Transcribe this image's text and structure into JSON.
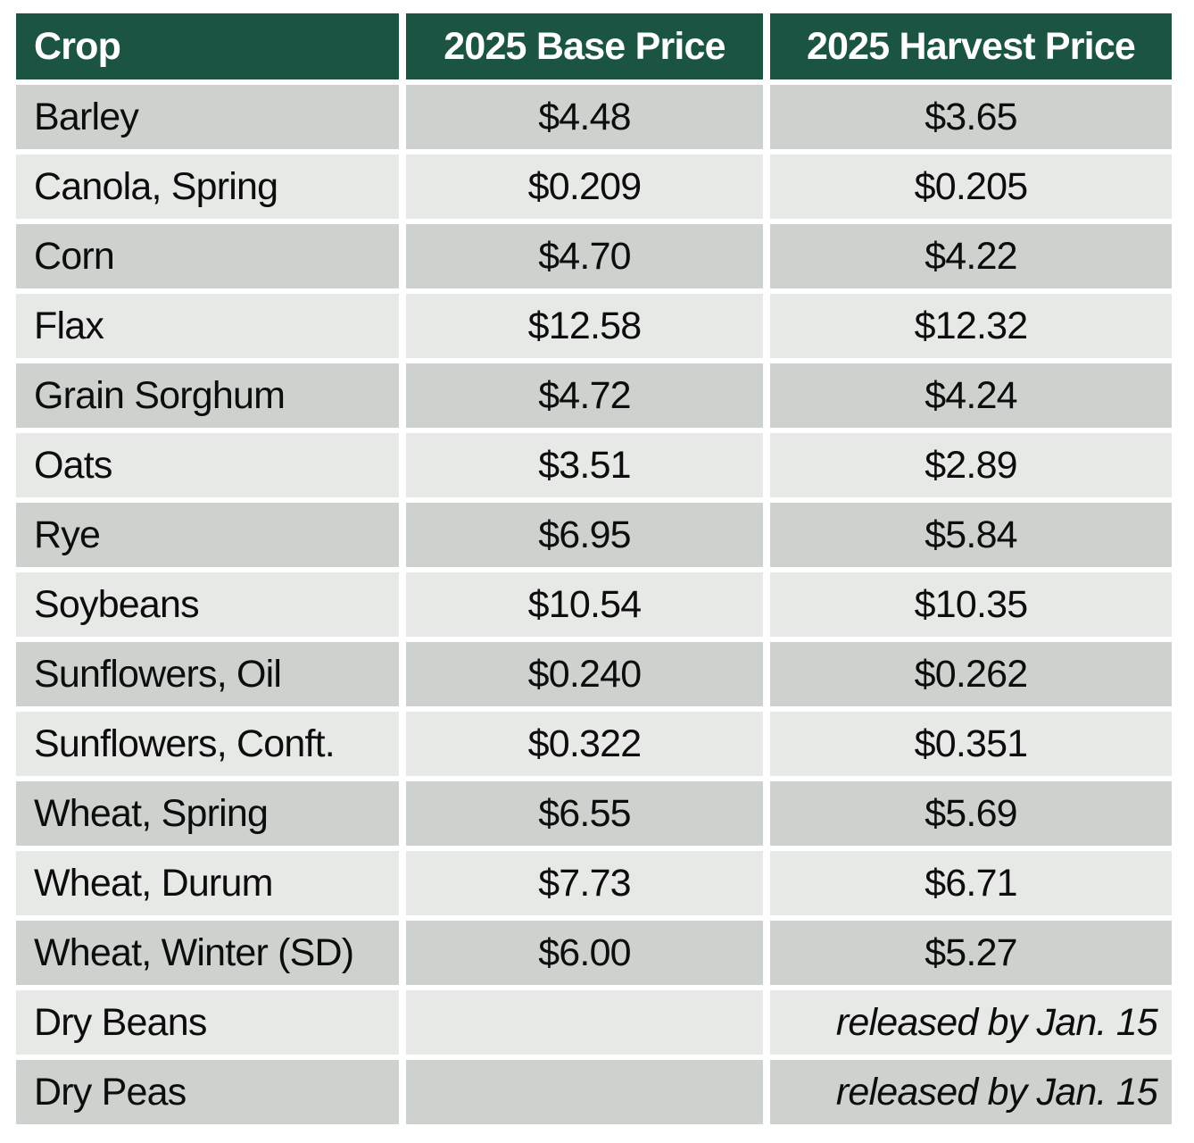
{
  "chart_data": {
    "type": "table",
    "columns": [
      "Crop",
      "2025 Base Price",
      "2025 Harvest Price"
    ],
    "rows": [
      [
        "Barley",
        "$4.48",
        "$3.65"
      ],
      [
        "Canola, Spring",
        "$0.209",
        "$0.205"
      ],
      [
        "Corn",
        "$4.70",
        "$4.22"
      ],
      [
        "Flax",
        "$12.58",
        "$12.32"
      ],
      [
        "Grain Sorghum",
        "$4.72",
        "$4.24"
      ],
      [
        "Oats",
        "$3.51",
        "$2.89"
      ],
      [
        "Rye",
        "$6.95",
        "$5.84"
      ],
      [
        "Soybeans",
        "$10.54",
        "$10.35"
      ],
      [
        "Sunflowers, Oil",
        "$0.240",
        "$0.262"
      ],
      [
        "Sunflowers, Conft.",
        "$0.322",
        "$0.351"
      ],
      [
        "Wheat, Spring",
        "$6.55",
        "$5.69"
      ],
      [
        "Wheat, Durum",
        "$7.73",
        "$6.71"
      ],
      [
        "Wheat, Winter (SD)",
        "$6.00",
        "$5.27"
      ],
      [
        "Dry Beans",
        "",
        "released by Jan. 15"
      ],
      [
        "Dry Peas",
        "",
        "released by Jan. 15"
      ]
    ],
    "layout": {
      "legend": "none",
      "grid": "white gutters between cells",
      "row_striping": "alternating starting dark on first data row"
    }
  },
  "colors": {
    "header_background": "#1b5442",
    "header_text": "#ffffff",
    "row_dark": "#cdd2ce",
    "row_light": "#e7e9e7",
    "body_text": "#0d0d0d",
    "page_background": "#ffffff"
  }
}
